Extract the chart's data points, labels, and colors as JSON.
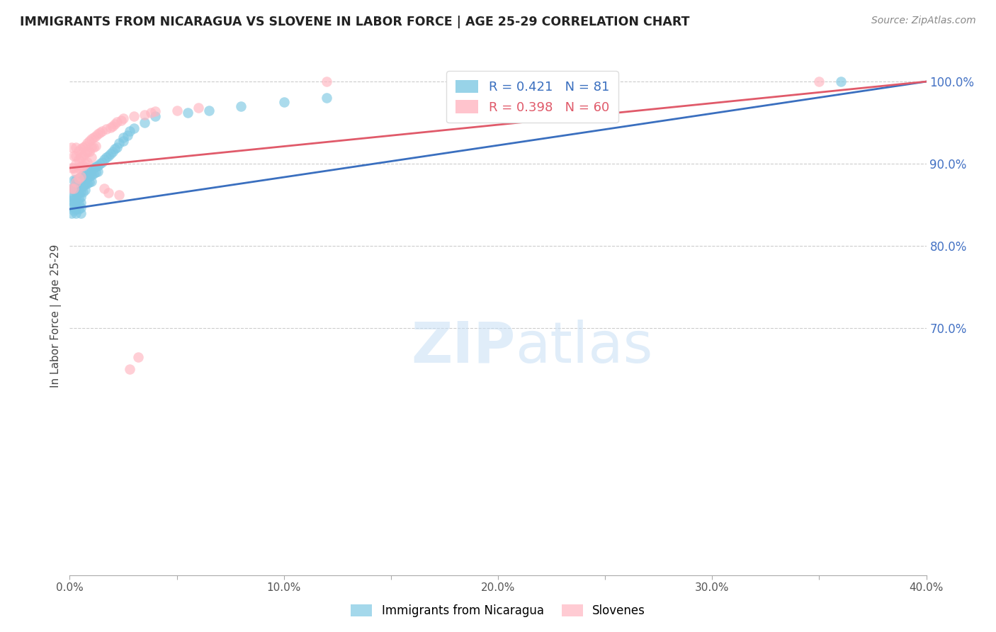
{
  "title": "IMMIGRANTS FROM NICARAGUA VS SLOVENE IN LABOR FORCE | AGE 25-29 CORRELATION CHART",
  "source": "Source: ZipAtlas.com",
  "ylabel": "In Labor Force | Age 25-29",
  "xlim": [
    0.0,
    0.4
  ],
  "ylim": [
    0.4,
    1.03
  ],
  "xtick_positions": [
    0.0,
    0.05,
    0.1,
    0.15,
    0.2,
    0.25,
    0.3,
    0.35,
    0.4
  ],
  "xticklabels": [
    "0.0%",
    "",
    "10.0%",
    "",
    "20.0%",
    "",
    "30.0%",
    "",
    "40.0%"
  ],
  "yticks_right": [
    0.7,
    0.8,
    0.9,
    1.0
  ],
  "ytick_labels_right": [
    "70.0%",
    "80.0%",
    "90.0%",
    "100.0%"
  ],
  "blue_color": "#7ec8e3",
  "pink_color": "#ffb6c1",
  "blue_line_color": "#3a6fbf",
  "pink_line_color": "#e05a6a",
  "legend_R_blue": "R = 0.421",
  "legend_N_blue": "N = 81",
  "legend_R_pink": "R = 0.398",
  "legend_N_pink": "N = 60",
  "blue_label": "Immigrants from Nicaragua",
  "pink_label": "Slovenes",
  "watermark_zip": "ZIP",
  "watermark_atlas": "atlas",
  "nicaragua_x": [
    0.001,
    0.001,
    0.001,
    0.001,
    0.001,
    0.002,
    0.002,
    0.002,
    0.002,
    0.002,
    0.003,
    0.003,
    0.003,
    0.003,
    0.003,
    0.003,
    0.003,
    0.003,
    0.004,
    0.004,
    0.004,
    0.004,
    0.004,
    0.004,
    0.004,
    0.005,
    0.005,
    0.005,
    0.005,
    0.005,
    0.005,
    0.005,
    0.005,
    0.006,
    0.006,
    0.006,
    0.006,
    0.007,
    0.007,
    0.007,
    0.007,
    0.008,
    0.008,
    0.008,
    0.009,
    0.009,
    0.009,
    0.01,
    0.01,
    0.01,
    0.011,
    0.011,
    0.012,
    0.012,
    0.013,
    0.013,
    0.014,
    0.015,
    0.016,
    0.017,
    0.018,
    0.019,
    0.02,
    0.021,
    0.022,
    0.023,
    0.025,
    0.025,
    0.027,
    0.028,
    0.03,
    0.035,
    0.04,
    0.055,
    0.065,
    0.08,
    0.1,
    0.12,
    0.19,
    0.215,
    0.36
  ],
  "nicaragua_y": [
    0.87,
    0.86,
    0.855,
    0.848,
    0.84,
    0.88,
    0.87,
    0.86,
    0.852,
    0.843,
    0.88,
    0.875,
    0.87,
    0.865,
    0.858,
    0.852,
    0.845,
    0.84,
    0.882,
    0.876,
    0.87,
    0.865,
    0.858,
    0.852,
    0.845,
    0.884,
    0.878,
    0.872,
    0.866,
    0.86,
    0.853,
    0.847,
    0.84,
    0.886,
    0.88,
    0.873,
    0.866,
    0.888,
    0.882,
    0.875,
    0.868,
    0.89,
    0.883,
    0.876,
    0.892,
    0.885,
    0.878,
    0.893,
    0.886,
    0.879,
    0.895,
    0.888,
    0.897,
    0.89,
    0.898,
    0.891,
    0.9,
    0.902,
    0.905,
    0.908,
    0.91,
    0.912,
    0.915,
    0.918,
    0.92,
    0.925,
    0.928,
    0.932,
    0.935,
    0.94,
    0.943,
    0.95,
    0.958,
    0.962,
    0.965,
    0.97,
    0.975,
    0.98,
    0.988,
    0.99,
    1.0
  ],
  "slovene_x": [
    0.001,
    0.001,
    0.001,
    0.002,
    0.002,
    0.002,
    0.003,
    0.003,
    0.003,
    0.003,
    0.003,
    0.004,
    0.004,
    0.004,
    0.004,
    0.005,
    0.005,
    0.005,
    0.005,
    0.006,
    0.006,
    0.006,
    0.007,
    0.007,
    0.007,
    0.008,
    0.008,
    0.008,
    0.009,
    0.009,
    0.01,
    0.01,
    0.01,
    0.011,
    0.011,
    0.012,
    0.012,
    0.013,
    0.014,
    0.015,
    0.016,
    0.017,
    0.018,
    0.019,
    0.02,
    0.021,
    0.022,
    0.023,
    0.024,
    0.025,
    0.028,
    0.03,
    0.032,
    0.035,
    0.038,
    0.04,
    0.05,
    0.06,
    0.12,
    0.35
  ],
  "slovene_y": [
    0.92,
    0.895,
    0.87,
    0.91,
    0.895,
    0.87,
    0.92,
    0.91,
    0.9,
    0.89,
    0.878,
    0.916,
    0.905,
    0.895,
    0.882,
    0.918,
    0.908,
    0.897,
    0.885,
    0.92,
    0.91,
    0.898,
    0.922,
    0.912,
    0.9,
    0.925,
    0.915,
    0.902,
    0.928,
    0.915,
    0.93,
    0.92,
    0.908,
    0.932,
    0.92,
    0.934,
    0.922,
    0.936,
    0.938,
    0.94,
    0.87,
    0.942,
    0.865,
    0.944,
    0.946,
    0.948,
    0.951,
    0.862,
    0.953,
    0.955,
    0.65,
    0.958,
    0.665,
    0.96,
    0.962,
    0.964,
    0.965,
    0.968,
    1.0,
    1.0
  ]
}
